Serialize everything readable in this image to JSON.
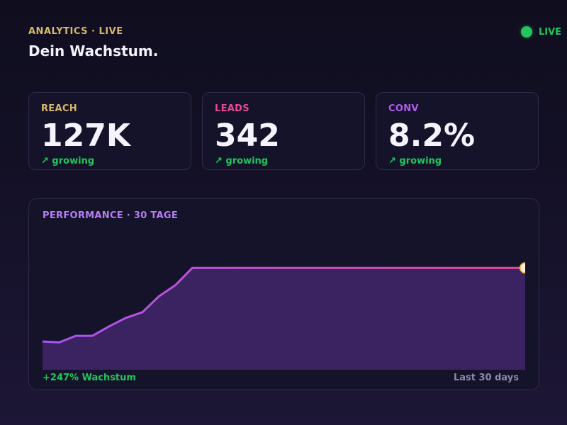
{
  "header": {
    "eyebrow": "ANALYTICS · LIVE",
    "title": "Dein Wachstum."
  },
  "status": {
    "label": "LIVE",
    "color": "#22c55e"
  },
  "metrics": [
    {
      "label": "REACH",
      "value": "127K",
      "trend": "↗ growing",
      "color": "#d6b86a"
    },
    {
      "label": "LEADS",
      "value": "342",
      "trend": "↗ growing",
      "color": "#ec4899"
    },
    {
      "label": "CONV",
      "value": "8.2%",
      "trend": "↗ growing",
      "color": "#b15cf0"
    }
  ],
  "performance": {
    "title": "PERFORMANCE · 30 TAGE",
    "growth_label": "+247% Wachstum",
    "range_label": "Last 30 days"
  },
  "chart_data": {
    "type": "area",
    "title": "PERFORMANCE · 30 TAGE",
    "x": [
      1,
      2,
      3,
      4,
      5,
      6,
      7,
      8,
      9,
      10,
      11,
      12,
      13,
      14,
      15,
      16,
      17,
      18,
      19,
      20,
      21,
      22,
      23,
      24,
      25,
      26,
      27,
      28,
      29,
      30
    ],
    "series": [
      {
        "values": [
          30,
          29,
          36,
          36,
          46,
          55,
          61,
          78,
          90,
          108,
          108,
          108,
          108,
          108,
          108,
          108,
          108,
          108,
          108,
          108,
          108,
          108,
          108,
          108,
          108,
          108,
          108,
          108,
          108,
          108
        ]
      }
    ],
    "ylim": [
      0,
      130
    ],
    "grid": false,
    "legend": "none",
    "colors": {
      "line_start": "#a855f7",
      "line_end": "#ec4899",
      "fill": "#3a2360",
      "marker": "#fff0d9",
      "marker_ring": "#f0c45a"
    }
  },
  "theme": {
    "card_border": "#2f2b48",
    "card_background": "#15132a",
    "page_background": "#0f0d1e"
  }
}
